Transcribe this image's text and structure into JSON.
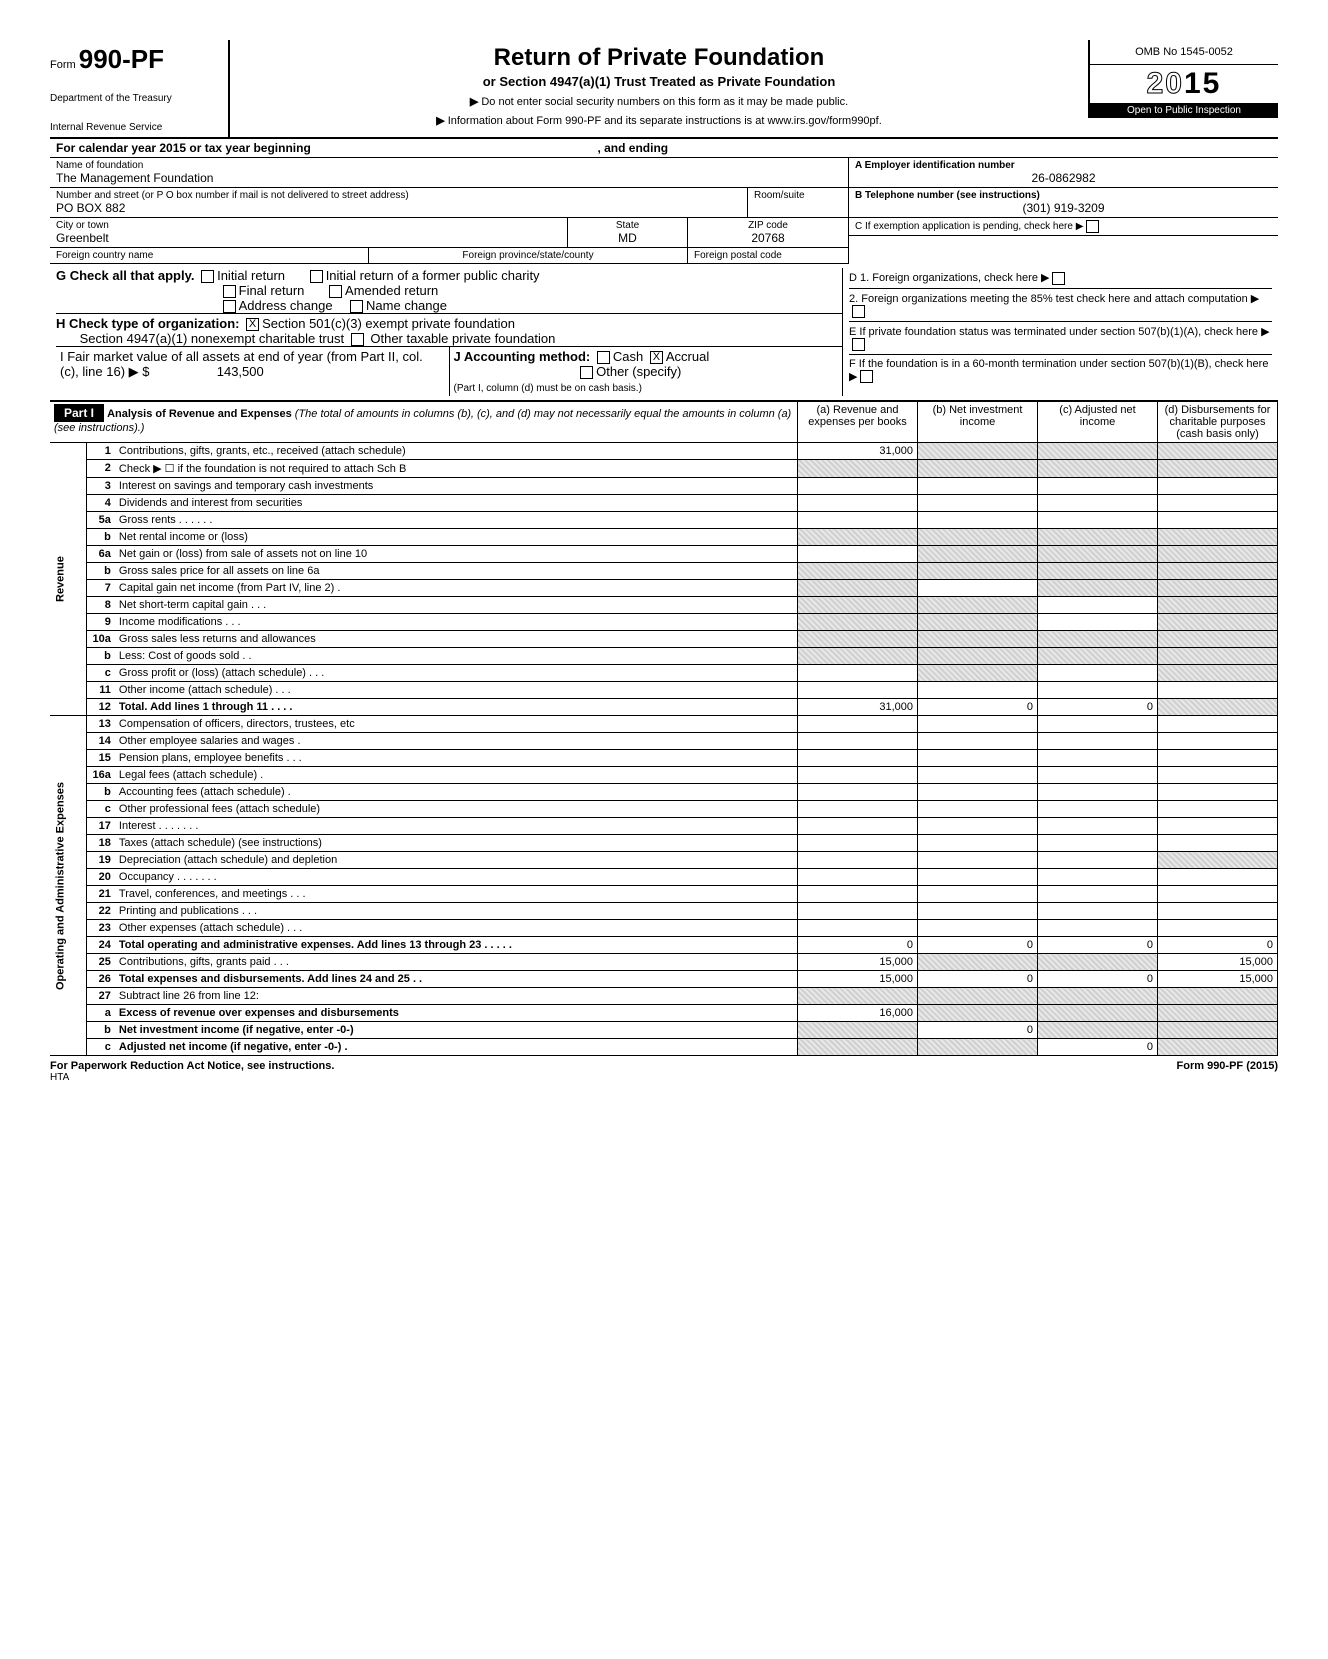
{
  "header": {
    "form_prefix": "Form",
    "form_code": "990-PF",
    "dept1": "Department of the Treasury",
    "dept2": "Internal Revenue Service",
    "title": "Return of Private Foundation",
    "subtitle": "or Section 4947(a)(1) Trust Treated as Private Foundation",
    "note1": "Do not enter social security numbers on this form as it may be made public.",
    "note2": "Information about Form 990-PF and its separate instructions is at www.irs.gov/form990pf.",
    "omb": "OMB No  1545-0052",
    "year": "2015",
    "inspect": "Open to Public Inspection"
  },
  "cal_year": "For calendar year 2015 or tax year beginning",
  "cal_year_end": ", and ending",
  "foundation": {
    "name_label": "Name of foundation",
    "name": "The Management Foundation",
    "addr_label": "Number and street (or P O  box number if mail is not delivered to street address)",
    "room_label": "Room/suite",
    "addr": "PO BOX 882",
    "city_label": "City or town",
    "state_label": "State",
    "zip_label": "ZIP code",
    "city": "Greenbelt",
    "state": "MD",
    "zip": "20768",
    "foreign_country_label": "Foreign country name",
    "foreign_prov_label": "Foreign province/state/county",
    "foreign_postal_label": "Foreign postal code"
  },
  "right_box": {
    "a_label": "A  Employer identification number",
    "ein": "26-0862982",
    "b_label": "B  Telephone number (see instructions)",
    "phone": "(301) 919-3209",
    "c_label": "C  If exemption application is pending, check here",
    "d1_label": "D  1. Foreign organizations, check here",
    "d2_label": "2. Foreign organizations meeting the 85% test check here and attach computation",
    "e_label": "E  If private foundation status was terminated under section 507(b)(1)(A), check here",
    "f_label": "F  If the foundation is in a 60-month termination under section 507(b)(1)(B), check here"
  },
  "g": {
    "label": "G   Check all that apply.",
    "opts": [
      "Initial return",
      "Initial return of a former public charity",
      "Final return",
      "Amended return",
      "Address change",
      "Name change"
    ]
  },
  "h": {
    "label": "H   Check type of organization:",
    "opt1": "Section 501(c)(3) exempt private foundation",
    "opt2": "Section 4947(a)(1) nonexempt charitable trust",
    "opt3": "Other taxable private foundation"
  },
  "i": {
    "label": "I    Fair market value of all assets at end of year (from Part II, col. (c), line 16) ▶ $",
    "value": "143,500"
  },
  "j": {
    "label": "J   Accounting method:",
    "cash": "Cash",
    "accrual": "Accrual",
    "other": "Other (specify)",
    "note": "(Part I, column (d) must be on cash basis.)"
  },
  "part1": {
    "label": "Part I",
    "title": "Analysis of Revenue and Expenses",
    "title_note": "(The total of amounts in columns (b), (c), and (d) may not necessarily equal the amounts in column (a) (see instructions).)",
    "col_a": "(a)  Revenue and expenses per books",
    "col_b": "(b)  Net investment income",
    "col_c": "(c)  Adjusted net income",
    "col_d": "(d)  Disbursements for charitable purposes (cash basis only)"
  },
  "revenue_label": "Revenue",
  "opex_label": "Operating and Administrative Expenses",
  "lines": [
    {
      "no": "1",
      "desc": "Contributions, gifts, grants, etc., received (attach schedule)",
      "a": "31,000",
      "b": "",
      "c": "",
      "d": "",
      "sb": true,
      "sc": true,
      "sd": true
    },
    {
      "no": "2",
      "desc": "Check ▶ ☐ if the foundation is not required to attach Sch  B",
      "a": "",
      "b": "",
      "c": "",
      "d": "",
      "sa": true,
      "sb": true,
      "sc": true,
      "sd": true
    },
    {
      "no": "3",
      "desc": "Interest on savings and temporary cash investments",
      "a": "",
      "b": "",
      "c": "",
      "d": ""
    },
    {
      "no": "4",
      "desc": "Dividends and interest from securities",
      "a": "",
      "b": "",
      "c": "",
      "d": ""
    },
    {
      "no": "5a",
      "desc": "Gross rents   .     .     .     .     .     .",
      "a": "",
      "b": "",
      "c": "",
      "d": ""
    },
    {
      "no": "b",
      "desc": "Net rental income or (loss)",
      "a": "",
      "b": "",
      "c": "",
      "d": "",
      "sa": true,
      "sb": true,
      "sc": true,
      "sd": true
    },
    {
      "no": "6a",
      "desc": "Net gain or (loss) from sale of assets not on line 10",
      "a": "",
      "b": "",
      "c": "",
      "d": "",
      "sb": true,
      "sc": true,
      "sd": true
    },
    {
      "no": "b",
      "desc": "Gross sales price for all assets on line 6a",
      "a": "",
      "b": "",
      "c": "",
      "d": "",
      "sa": true,
      "sb": true,
      "sc": true,
      "sd": true
    },
    {
      "no": "7",
      "desc": "Capital gain net income (from Part IV, line 2)   .",
      "a": "",
      "b": "",
      "c": "",
      "d": "",
      "sa": true,
      "sc": true,
      "sd": true
    },
    {
      "no": "8",
      "desc": "Net short-term capital gain   .     .     .",
      "a": "",
      "b": "",
      "c": "",
      "d": "",
      "sa": true,
      "sb": true,
      "sd": true
    },
    {
      "no": "9",
      "desc": "Income modifications      .   .   .",
      "a": "",
      "b": "",
      "c": "",
      "d": "",
      "sa": true,
      "sb": true,
      "sd": true
    },
    {
      "no": "10a",
      "desc": "Gross sales less returns and allowances",
      "a": "",
      "b": "",
      "c": "",
      "d": "",
      "sa": true,
      "sb": true,
      "sc": true,
      "sd": true
    },
    {
      "no": "b",
      "desc": "Less: Cost of goods sold   .  .",
      "a": "",
      "b": "",
      "c": "",
      "d": "",
      "sa": true,
      "sb": true,
      "sc": true,
      "sd": true
    },
    {
      "no": "c",
      "desc": "Gross profit or (loss) (attach schedule)   .    .    .",
      "a": "",
      "b": "",
      "c": "",
      "d": "",
      "sb": true,
      "sd": true
    },
    {
      "no": "11",
      "desc": "Other income (attach schedule)   .     .     .",
      "a": "",
      "b": "",
      "c": "",
      "d": ""
    },
    {
      "no": "12",
      "desc": "Total. Add lines 1 through 11    .    .    .    .",
      "a": "31,000",
      "b": "0",
      "c": "0",
      "d": "",
      "bold": true,
      "sd": true
    },
    {
      "no": "13",
      "desc": "Compensation of officers, directors, trustees, etc",
      "a": "",
      "b": "",
      "c": "",
      "d": ""
    },
    {
      "no": "14",
      "desc": "Other employee salaries and wages   .",
      "a": "",
      "b": "",
      "c": "",
      "d": ""
    },
    {
      "no": "15",
      "desc": "Pension plans, employee benefits  .    .    .",
      "a": "",
      "b": "",
      "c": "",
      "d": ""
    },
    {
      "no": "16a",
      "desc": "Legal fees (attach schedule)   .",
      "a": "",
      "b": "",
      "c": "",
      "d": ""
    },
    {
      "no": "b",
      "desc": "Accounting fees (attach schedule)   .",
      "a": "",
      "b": "",
      "c": "",
      "d": ""
    },
    {
      "no": "c",
      "desc": "Other professional fees (attach schedule)",
      "a": "",
      "b": "",
      "c": "",
      "d": ""
    },
    {
      "no": "17",
      "desc": "Interest     .     .     .     .     .     .     .",
      "a": "",
      "b": "",
      "c": "",
      "d": ""
    },
    {
      "no": "18",
      "desc": "Taxes (attach schedule) (see instructions)",
      "a": "",
      "b": "",
      "c": "",
      "d": ""
    },
    {
      "no": "19",
      "desc": "Depreciation (attach schedule) and depletion",
      "a": "",
      "b": "",
      "c": "",
      "d": "",
      "sd": true
    },
    {
      "no": "20",
      "desc": "Occupancy   .     .     .     .     .     .     .",
      "a": "",
      "b": "",
      "c": "",
      "d": ""
    },
    {
      "no": "21",
      "desc": "Travel, conferences, and meetings    .   .   .",
      "a": "",
      "b": "",
      "c": "",
      "d": ""
    },
    {
      "no": "22",
      "desc": "Printing and publications     .     .     .",
      "a": "",
      "b": "",
      "c": "",
      "d": ""
    },
    {
      "no": "23",
      "desc": "Other expenses (attach schedule)     .    .    .",
      "a": "",
      "b": "",
      "c": "",
      "d": ""
    },
    {
      "no": "24",
      "desc": "Total operating and administrative expenses. Add lines 13 through 23   .     .     .     .     .",
      "a": "0",
      "b": "0",
      "c": "0",
      "d": "0",
      "bold": true
    },
    {
      "no": "25",
      "desc": "Contributions, gifts, grants paid    .    .    .",
      "a": "15,000",
      "b": "",
      "c": "",
      "d": "15,000",
      "sb": true,
      "sc": true
    },
    {
      "no": "26",
      "desc": "Total expenses and disbursements. Add lines 24 and 25 .   .",
      "a": "15,000",
      "b": "0",
      "c": "0",
      "d": "15,000",
      "bold": true
    },
    {
      "no": "27",
      "desc": "Subtract line 26 from line 12:",
      "a": "",
      "b": "",
      "c": "",
      "d": "",
      "sa": true,
      "sb": true,
      "sc": true,
      "sd": true
    },
    {
      "no": "a",
      "desc": "Excess of revenue over expenses and disbursements",
      "a": "16,000",
      "b": "",
      "c": "",
      "d": "",
      "bold": true,
      "sb": true,
      "sc": true,
      "sd": true
    },
    {
      "no": "b",
      "desc": "Net investment income (if negative, enter -0-)",
      "a": "",
      "b": "0",
      "c": "",
      "d": "",
      "bold": true,
      "sa": true,
      "sc": true,
      "sd": true
    },
    {
      "no": "c",
      "desc": "Adjusted net income (if negative, enter -0-)   .",
      "a": "",
      "b": "",
      "c": "0",
      "d": "",
      "bold": true,
      "sa": true,
      "sb": true,
      "sd": true
    }
  ],
  "footer": {
    "left": "For Paperwork Reduction Act Notice, see instructions.",
    "hta": "HTA",
    "right": "Form 990-PF (2015)"
  }
}
